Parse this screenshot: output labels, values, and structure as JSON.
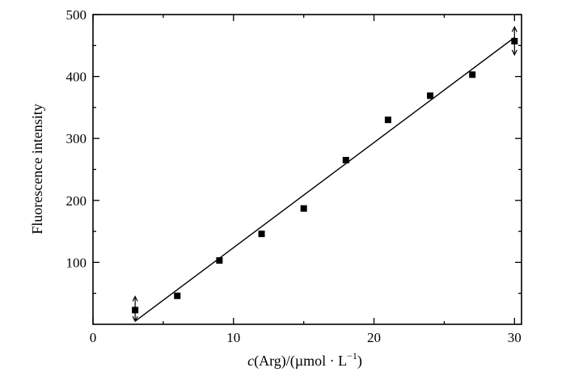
{
  "chart_data": {
    "type": "scatter",
    "title": "",
    "xlabel": {
      "italic": "c",
      "rest": "(Arg)/(µmol · L",
      "sup": "−1",
      "close": ")"
    },
    "ylabel": "Fluorescence intensity",
    "xlim": [
      0,
      30.5
    ],
    "ylim": [
      0,
      500
    ],
    "xticks": [
      0,
      10,
      20,
      30
    ],
    "yticks": [
      100,
      200,
      300,
      400,
      500
    ],
    "x_minor_ticks": [
      5,
      15,
      25
    ],
    "y_minor_ticks": [
      50,
      150,
      250,
      350,
      450
    ],
    "grid": false,
    "legend": "none",
    "series": [
      {
        "marker": "square",
        "x": [
          3,
          6,
          9,
          12,
          15,
          18,
          21,
          24,
          27,
          30
        ],
        "y": [
          23,
          46,
          103,
          146,
          187,
          265,
          330,
          369,
          403,
          457
        ]
      }
    ],
    "fit_line": {
      "x": [
        3,
        30
      ],
      "y": [
        5,
        463
      ]
    },
    "error_bars": [
      {
        "x": 3,
        "y": 23,
        "low": 5,
        "high": 45
      },
      {
        "x": 30,
        "y": 457,
        "low": 435,
        "high": 480
      }
    ]
  }
}
